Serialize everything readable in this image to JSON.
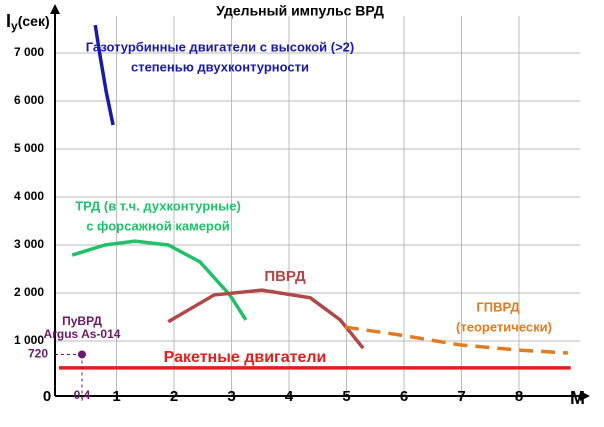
{
  "chart_data": {
    "type": "line",
    "title": "Удельный импульс ВРД",
    "ylabel": {
      "main": "I",
      "sub": "y",
      "suffix": "(сек)"
    },
    "xlabel": "M",
    "xlim": [
      0,
      9
    ],
    "ylim": [
      0,
      7600
    ],
    "xticks": [
      0,
      1,
      2,
      3,
      4,
      5,
      6,
      7,
      8
    ],
    "yticks": [
      {
        "value": 1000,
        "label": "1 000"
      },
      {
        "value": 2000,
        "label": "2 000"
      },
      {
        "value": 3000,
        "label": "3 000"
      },
      {
        "value": 4000,
        "label": "4 000"
      },
      {
        "value": 5000,
        "label": "5 000"
      },
      {
        "value": 6000,
        "label": "6 000"
      },
      {
        "value": 7000,
        "label": "7 000"
      }
    ],
    "grid": true,
    "series": [
      {
        "labels": [
          "Газотурбинные двигатели с высокой (>2)",
          "степенью двухконтурности"
        ],
        "color": "#1a1aa8",
        "x": [
          0.63,
          0.72,
          0.82,
          0.94
        ],
        "values": [
          7580,
          6900,
          6200,
          5500
        ]
      },
      {
        "labels": [
          "ТРД (в т.ч. духконтурные)",
          "с форсажной камерой"
        ],
        "color": "#22c06a",
        "x": [
          0.23,
          0.8,
          1.32,
          1.9,
          2.45,
          2.97,
          3.25
        ],
        "values": [
          2790,
          3000,
          3080,
          3000,
          2650,
          1960,
          1440
        ]
      },
      {
        "labels": [
          "ПВРД"
        ],
        "color": "#b04848",
        "x": [
          1.9,
          2.7,
          3.53,
          4.37,
          4.89,
          5.29
        ],
        "values": [
          1400,
          1960,
          2060,
          1900,
          1440,
          850
        ]
      },
      {
        "labels": [
          "ГПВРД",
          "(теоретически)"
        ],
        "color": "#e07b22",
        "dashed": true,
        "x": [
          4.97,
          5.93,
          6.97,
          8.0,
          8.85
        ],
        "values": [
          1290,
          1125,
          920,
          810,
          750
        ]
      },
      {
        "labels": [
          "Ракетные двигатели"
        ],
        "color": "#e02020",
        "x": [
          0,
          8.9
        ],
        "values": [
          440,
          440
        ]
      }
    ],
    "point": {
      "labels": [
        "ПуВРД",
        "Argus As-014"
      ],
      "color": "#6a1a6a",
      "x": 0.4,
      "y": 720,
      "x_label": "0,4",
      "y_label": "720"
    }
  }
}
